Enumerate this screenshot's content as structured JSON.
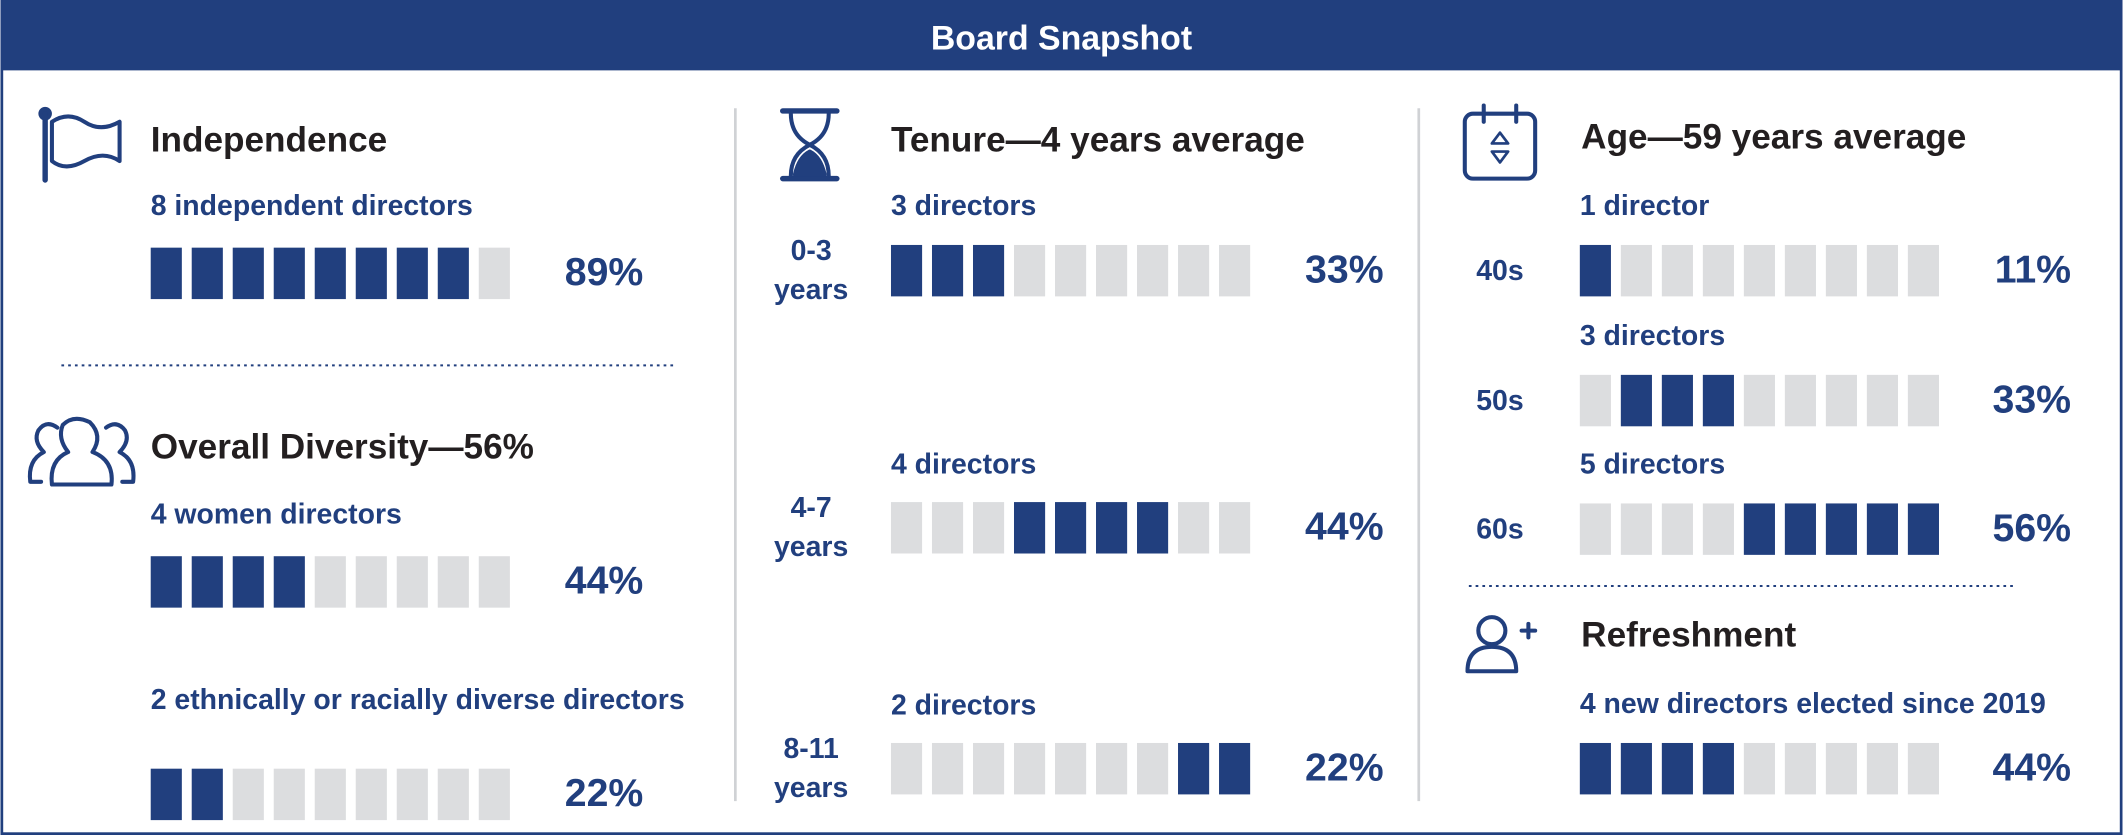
{
  "header": {
    "title": "Board Snapshot"
  },
  "board_size": 9,
  "sections": [
    {
      "title": "Independence",
      "rows": [
        {
          "label": "8 independent directors",
          "filled": 8,
          "percent": "89%"
        }
      ]
    },
    {
      "title": "Overall Diversity—56%",
      "rows": [
        {
          "label": "4 women directors",
          "filled": 4,
          "percent": "44%"
        },
        {
          "label": "2 ethnically or racially diverse directors",
          "filled": 2,
          "percent": "22%"
        }
      ]
    },
    {
      "title": "Tenure—4 years average",
      "stacked": true,
      "rows": [
        {
          "group": "0-3 years",
          "label": "3 directors",
          "filled": 3,
          "percent": "33%"
        },
        {
          "group": "4-7 years",
          "label": "4 directors",
          "filled": 4,
          "percent": "44%"
        },
        {
          "group": "8-11 years",
          "label": "2 directors",
          "filled": 2,
          "percent": "22%"
        }
      ]
    },
    {
      "title": "Age—59 years average",
      "stacked": true,
      "rows": [
        {
          "group": "40s",
          "label": "1 director",
          "filled": 1,
          "percent": "11%"
        },
        {
          "group": "50s",
          "label": "3 directors",
          "filled": 3,
          "percent": "33%"
        },
        {
          "group": "60s",
          "label": "5 directors",
          "filled": 5,
          "percent": "56%"
        }
      ]
    },
    {
      "title": "Refreshment",
      "rows": [
        {
          "label": "4 new directors elected since 2019",
          "filled": 4,
          "percent": "44%"
        }
      ]
    }
  ]
}
